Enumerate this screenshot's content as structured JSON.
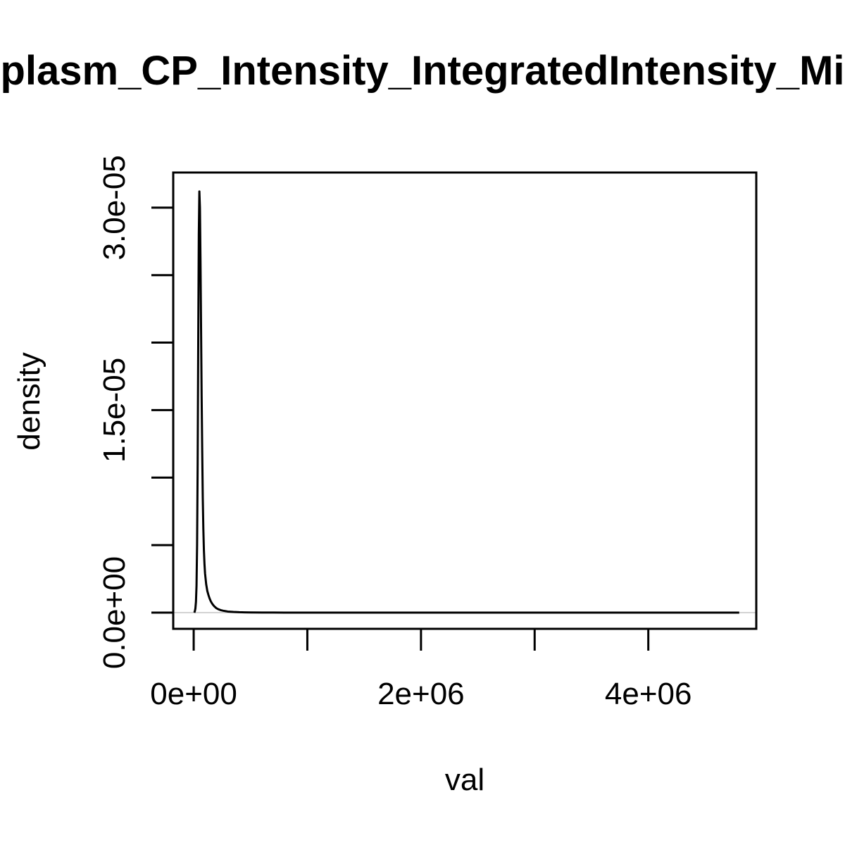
{
  "chart_data": {
    "type": "line",
    "title": "plasm_CP_Intensity_IntegratedIntensity_Mi",
    "xlabel": "val",
    "ylabel": "density",
    "xlim": [
      -180000,
      4950000
    ],
    "ylim": [
      -1.2e-06,
      3.26e-05
    ],
    "x_ticks": [
      0,
      1000000,
      2000000,
      3000000,
      4000000
    ],
    "x_tick_labels": [
      {
        "value": 0,
        "label": "0e+00"
      },
      {
        "value": 2000000,
        "label": "2e+06"
      },
      {
        "value": 4000000,
        "label": "4e+06"
      }
    ],
    "y_ticks": [
      0,
      5e-06,
      1e-05,
      1.5e-05,
      2e-05,
      2.5e-05,
      3e-05
    ],
    "y_tick_labels": [
      {
        "value": 0,
        "label": "0.0e+00"
      },
      {
        "value": 1.5e-05,
        "label": "1.5e-05"
      },
      {
        "value": 3e-05,
        "label": "3.0e-05"
      }
    ],
    "baseline": 0,
    "grid": false,
    "legend": "none",
    "colors": {
      "line": "#000000",
      "baseline": "#d3d3d3",
      "frame": "#000000"
    },
    "series": [
      {
        "x": [
          5000,
          10000,
          15000,
          20000,
          25000,
          30000,
          35000,
          40000,
          45000,
          50000,
          55000,
          60000,
          65000,
          70000,
          75000,
          80000,
          85000,
          90000,
          95000,
          100000,
          110000,
          120000,
          130000,
          140000,
          150000,
          160000,
          170000,
          180000,
          190000,
          200000,
          220000,
          240000,
          260000,
          280000,
          300000,
          350000,
          400000,
          450000,
          500000,
          600000,
          700000,
          800000,
          1000000,
          1500000,
          2000000,
          3000000,
          4000000,
          4800000
        ],
        "y": [
          0,
          1e-07,
          3e-07,
          8e-07,
          2e-06,
          5e-06,
          1.1e-05,
          2e-05,
          2.8e-05,
          3.12e-05,
          3e-05,
          2.6e-05,
          2.1e-05,
          1.6e-05,
          1.2e-05,
          8.5e-06,
          6.2e-06,
          4.6e-06,
          3.6e-06,
          2.9e-06,
          2.1e-06,
          1.6e-06,
          1.3e-06,
          1.05e-06,
          8.5e-07,
          7e-07,
          5.8e-07,
          4.8e-07,
          4e-07,
          3.3e-07,
          2.4e-07,
          1.8e-07,
          1.4e-07,
          1.1e-07,
          8e-08,
          5e-08,
          3e-08,
          2e-08,
          1.5e-08,
          8e-09,
          5e-09,
          3e-09,
          2e-09,
          1e-09,
          5e-10,
          2e-10,
          1e-10,
          0
        ]
      }
    ]
  }
}
